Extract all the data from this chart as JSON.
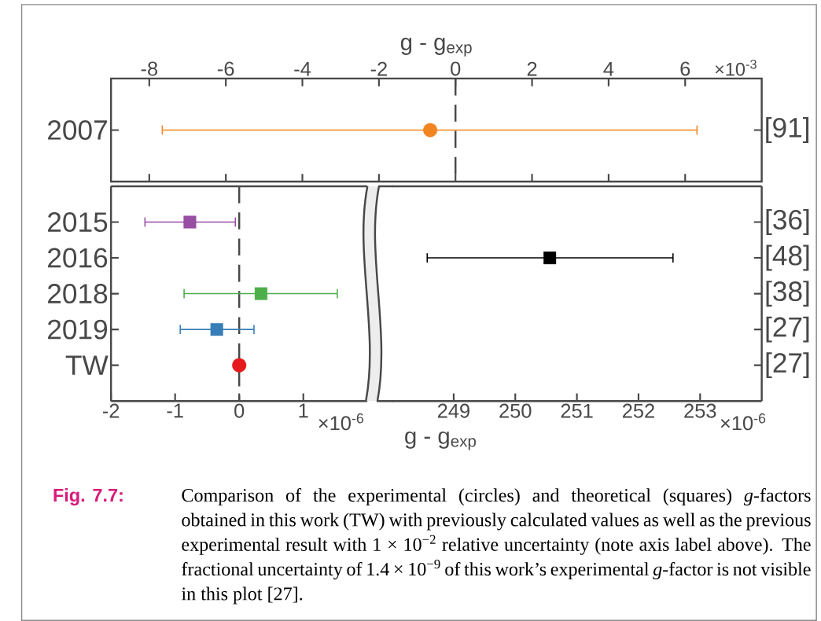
{
  "chart_data": [
    {
      "type": "scatter",
      "orientation": "horizontal",
      "categories": [
        "2007"
      ],
      "xlabel": "g - g$_{exp}$",
      "xlim": [
        -9,
        8
      ],
      "xticks": [
        -8,
        -6,
        -4,
        -2,
        0,
        2,
        4,
        6
      ],
      "series": [
        {
          "color": "#f28522",
          "marker": "circle",
          "values": [
            -0.66
          ],
          "errors": [
            [
              -7.66,
              6.31
            ]
          ]
        }
      ],
      "ref_lines": [
        {
          "axis": "x",
          "value": 0,
          "line_style": "dashed",
          "color": "#484848"
        }
      ],
      "annotations": [
        "×10$^{-3}$",
        "[91]"
      ]
    },
    {
      "type": "scatter",
      "orientation": "horizontal",
      "categories": [
        "2015",
        "2016",
        "2018",
        "2019",
        "TW"
      ],
      "xlim": [
        -2,
        2
      ],
      "xticks": [
        -2,
        -1,
        0,
        1
      ],
      "series": [
        {
          "color": "#984ea3",
          "marker": "square",
          "values": [
            -0.77,
            null,
            null,
            null,
            null
          ],
          "errors": [
            [
              -1.47,
              -0.06
            ],
            null,
            null,
            null,
            null
          ]
        },
        {
          "color": "#4daf4a",
          "marker": "square",
          "values": [
            null,
            null,
            0.34,
            null,
            null
          ],
          "errors": [
            null,
            null,
            [
              -0.86,
              1.53
            ],
            null,
            null
          ]
        },
        {
          "color": "#377eb8",
          "marker": "square",
          "values": [
            null,
            null,
            null,
            -0.35,
            null
          ],
          "errors": [
            null,
            null,
            null,
            [
              -0.92,
              0.23
            ],
            null
          ]
        },
        {
          "color": "#e41a1c",
          "marker": "circle",
          "values": [
            null,
            null,
            null,
            null,
            0
          ]
        }
      ],
      "ref_lines": [
        {
          "axis": "x",
          "value": 0,
          "line_style": "dashed",
          "color": "#484848"
        }
      ],
      "annotations": [
        "×10$^{-6}$"
      ]
    },
    {
      "type": "scatter",
      "orientation": "horizontal",
      "categories": [
        "[36]",
        "[48]",
        "[38]",
        "[27]",
        "[27]"
      ],
      "xlabel": "g - g$_{exp}$",
      "xlim": [
        248,
        254
      ],
      "xticks": [
        249,
        250,
        251,
        252,
        253
      ],
      "series": [
        {
          "color": "#000000",
          "marker": "square",
          "values": [
            null,
            250.56,
            null,
            null,
            null
          ],
          "errors": [
            null,
            [
              248.57,
              252.56
            ],
            null,
            null,
            null
          ]
        }
      ],
      "annotations": [
        "×10$^{-6}$",
        "Fig. 7.7:",
        "Comparison of the experimental (circles) and theoretical (squares) *g*-factors obtained in this work (TW) with previously calculated values as well as the previous experimental result with 1 × 10$^{−2}$ relative uncertainty (note axis label above). The fractional uncertainty of 1.4 × 10$^{−9}$ of this work’s experimental *g*-factor is not visible in this plot [27]."
      ]
    }
  ]
}
